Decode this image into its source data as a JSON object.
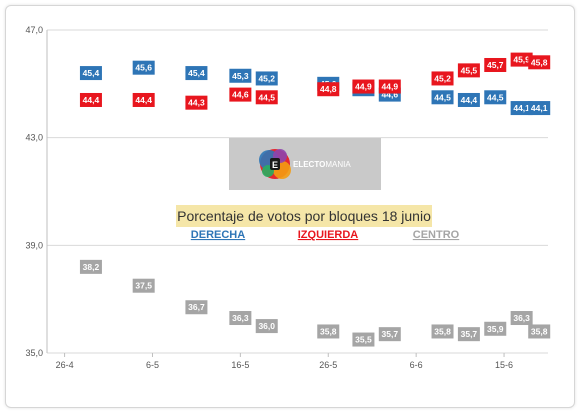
{
  "chart_data": {
    "type": "scatter",
    "title": "Porcentaje de votos por bloques 18 junio",
    "xlabel": "",
    "ylabel": "",
    "ylim": [
      35.0,
      47.0
    ],
    "y_ticks": [
      "35,0",
      "39,0",
      "43,0",
      "47,0"
    ],
    "y_tick_values": [
      35.0,
      39.0,
      43.0,
      47.0
    ],
    "x_ticks": [
      "26-4",
      "6-5",
      "16-5",
      "26-5",
      "6-6",
      "15-6"
    ],
    "x_tick_positions": [
      "2016-04-26",
      "2016-05-06",
      "2016-05-16",
      "2016-05-26",
      "2016-06-05",
      "2016-06-15"
    ],
    "xlim": [
      "2016-04-24",
      "2016-06-20"
    ],
    "grid": "horizontal",
    "legend_position": "center",
    "series": [
      {
        "name": "DERECHA",
        "color": "#2e75b6",
        "points": [
          {
            "x": "2016-04-29",
            "y": 45.4,
            "label": "45,4"
          },
          {
            "x": "2016-05-05",
            "y": 45.6,
            "label": "45,6"
          },
          {
            "x": "2016-05-11",
            "y": 45.4,
            "label": "45,4"
          },
          {
            "x": "2016-05-16",
            "y": 45.3,
            "label": "45,3"
          },
          {
            "x": "2016-05-19",
            "y": 45.2,
            "label": "45,2"
          },
          {
            "x": "2016-05-26",
            "y": 45.0,
            "label": "45,0"
          },
          {
            "x": "2016-05-30",
            "y": 44.8,
            "label": "44,8"
          },
          {
            "x": "2016-06-02",
            "y": 44.6,
            "label": "44,6"
          },
          {
            "x": "2016-06-08",
            "y": 44.5,
            "label": "44,5"
          },
          {
            "x": "2016-06-11",
            "y": 44.4,
            "label": "44,4"
          },
          {
            "x": "2016-06-14",
            "y": 44.5,
            "label": "44,5"
          },
          {
            "x": "2016-06-17",
            "y": 44.1,
            "label": "44,1"
          },
          {
            "x": "2016-06-19",
            "y": 44.1,
            "label": "44,1"
          }
        ]
      },
      {
        "name": "IZQUIERDA",
        "color": "#e8161e",
        "points": [
          {
            "x": "2016-04-29",
            "y": 44.4,
            "label": "44,4"
          },
          {
            "x": "2016-05-05",
            "y": 44.4,
            "label": "44,4"
          },
          {
            "x": "2016-05-11",
            "y": 44.3,
            "label": "44,3"
          },
          {
            "x": "2016-05-16",
            "y": 44.6,
            "label": "44,6"
          },
          {
            "x": "2016-05-19",
            "y": 44.5,
            "label": "44,5"
          },
          {
            "x": "2016-05-26",
            "y": 44.8,
            "label": "44,8"
          },
          {
            "x": "2016-05-30",
            "y": 44.9,
            "label": "44,9"
          },
          {
            "x": "2016-06-02",
            "y": 44.9,
            "label": "44,9"
          },
          {
            "x": "2016-06-08",
            "y": 45.2,
            "label": "45,2"
          },
          {
            "x": "2016-06-11",
            "y": 45.5,
            "label": "45,5"
          },
          {
            "x": "2016-06-14",
            "y": 45.7,
            "label": "45,7"
          },
          {
            "x": "2016-06-17",
            "y": 45.9,
            "label": "45,9"
          },
          {
            "x": "2016-06-19",
            "y": 45.8,
            "label": "45,8"
          }
        ]
      },
      {
        "name": "CENTRO",
        "color": "#a5a5a5",
        "points": [
          {
            "x": "2016-04-29",
            "y": 38.2,
            "label": "38,2"
          },
          {
            "x": "2016-05-05",
            "y": 37.5,
            "label": "37,5"
          },
          {
            "x": "2016-05-11",
            "y": 36.7,
            "label": "36,7"
          },
          {
            "x": "2016-05-16",
            "y": 36.3,
            "label": "36,3"
          },
          {
            "x": "2016-05-19",
            "y": 36.0,
            "label": "36,0"
          },
          {
            "x": "2016-05-26",
            "y": 35.8,
            "label": "35,8"
          },
          {
            "x": "2016-05-30",
            "y": 35.5,
            "label": "35,5"
          },
          {
            "x": "2016-06-02",
            "y": 35.7,
            "label": "35,7"
          },
          {
            "x": "2016-06-08",
            "y": 35.8,
            "label": "35,8"
          },
          {
            "x": "2016-06-11",
            "y": 35.7,
            "label": "35,7"
          },
          {
            "x": "2016-06-14",
            "y": 35.9,
            "label": "35,9"
          },
          {
            "x": "2016-06-17",
            "y": 36.3,
            "label": "36,3"
          },
          {
            "x": "2016-06-19",
            "y": 35.8,
            "label": "35,8"
          }
        ]
      }
    ],
    "title_box_color": "#f5e6a8",
    "gridline_color": "#d9d9d9"
  },
  "logo": {
    "text": "ELECTOMANIA",
    "text_prefix": "ELECTO",
    "text_suffix": "MANIA",
    "background": "#c9c9c9",
    "accent_colors": [
      "#e8161e",
      "#2e75b6",
      "#f39c12",
      "#8e44ad",
      "#27ae60"
    ]
  }
}
